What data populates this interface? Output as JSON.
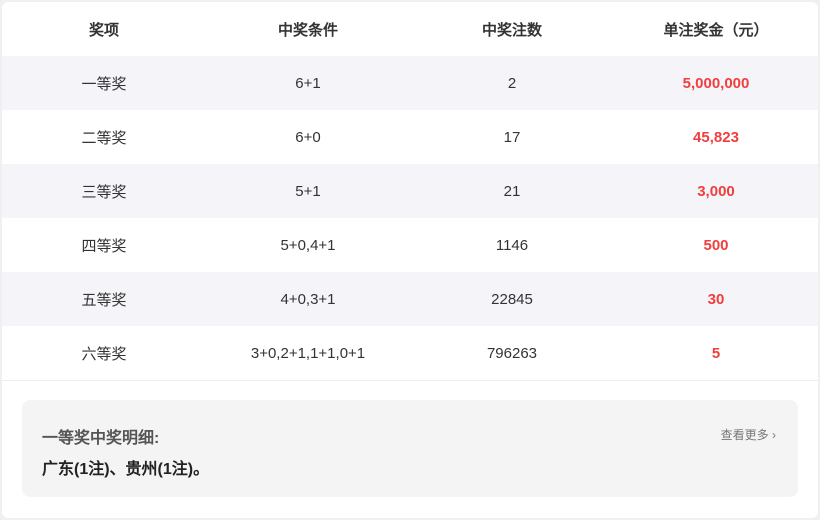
{
  "table": {
    "headers": [
      "奖项",
      "中奖条件",
      "中奖注数",
      "单注奖金（元）"
    ],
    "rows": [
      {
        "level": "一等奖",
        "condition": "6+1",
        "count": "2",
        "prize": "5,000,000"
      },
      {
        "level": "二等奖",
        "condition": "6+0",
        "count": "17",
        "prize": "45,823"
      },
      {
        "level": "三等奖",
        "condition": "5+1",
        "count": "21",
        "prize": "3,000"
      },
      {
        "level": "四等奖",
        "condition": "5+0,4+1",
        "count": "1146",
        "prize": "500"
      },
      {
        "level": "五等奖",
        "condition": "4+0,3+1",
        "count": "22845",
        "prize": "30"
      },
      {
        "level": "六等奖",
        "condition": "3+0,2+1,1+1,0+1",
        "count": "796263",
        "prize": "5"
      }
    ]
  },
  "detail": {
    "title": "一等奖中奖明细:",
    "text": "广东(1注)、贵州(1注)。",
    "more_label": "查看更多",
    "more_icon": "chevron-right-icon"
  },
  "colors": {
    "prize": "#f03e3e",
    "alt_row": "#f5f5f9"
  }
}
